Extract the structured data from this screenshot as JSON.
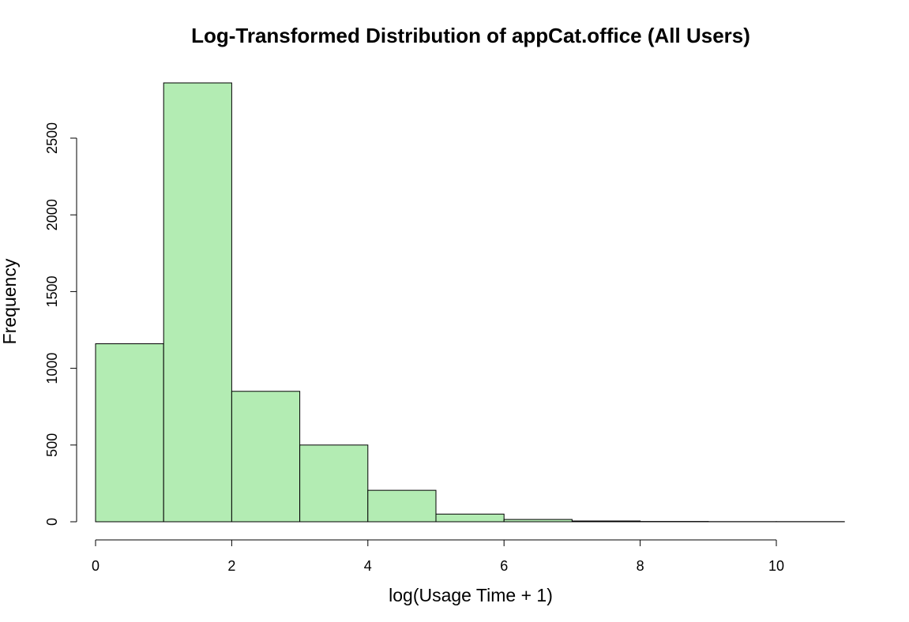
{
  "chart_data": {
    "type": "bar",
    "title": "Log-Transformed Distribution of appCat.office (All Users)",
    "xlabel": "log(Usage Time + 1)",
    "ylabel": "Frequency",
    "bin_edges": [
      0,
      1,
      2,
      3,
      4,
      5,
      6,
      7,
      8,
      9,
      10,
      11
    ],
    "values": [
      1160,
      2860,
      850,
      500,
      205,
      50,
      15,
      5,
      2,
      1,
      1
    ],
    "xlim": [
      0,
      11
    ],
    "ylim": [
      0,
      2860
    ],
    "x_ticks": [
      0,
      2,
      4,
      6,
      8,
      10
    ],
    "y_ticks": [
      0,
      500,
      1000,
      1500,
      2000,
      2500
    ],
    "bar_color": "#b3ecb3",
    "edge_color": "#000000",
    "grid": false,
    "legend": "none"
  }
}
